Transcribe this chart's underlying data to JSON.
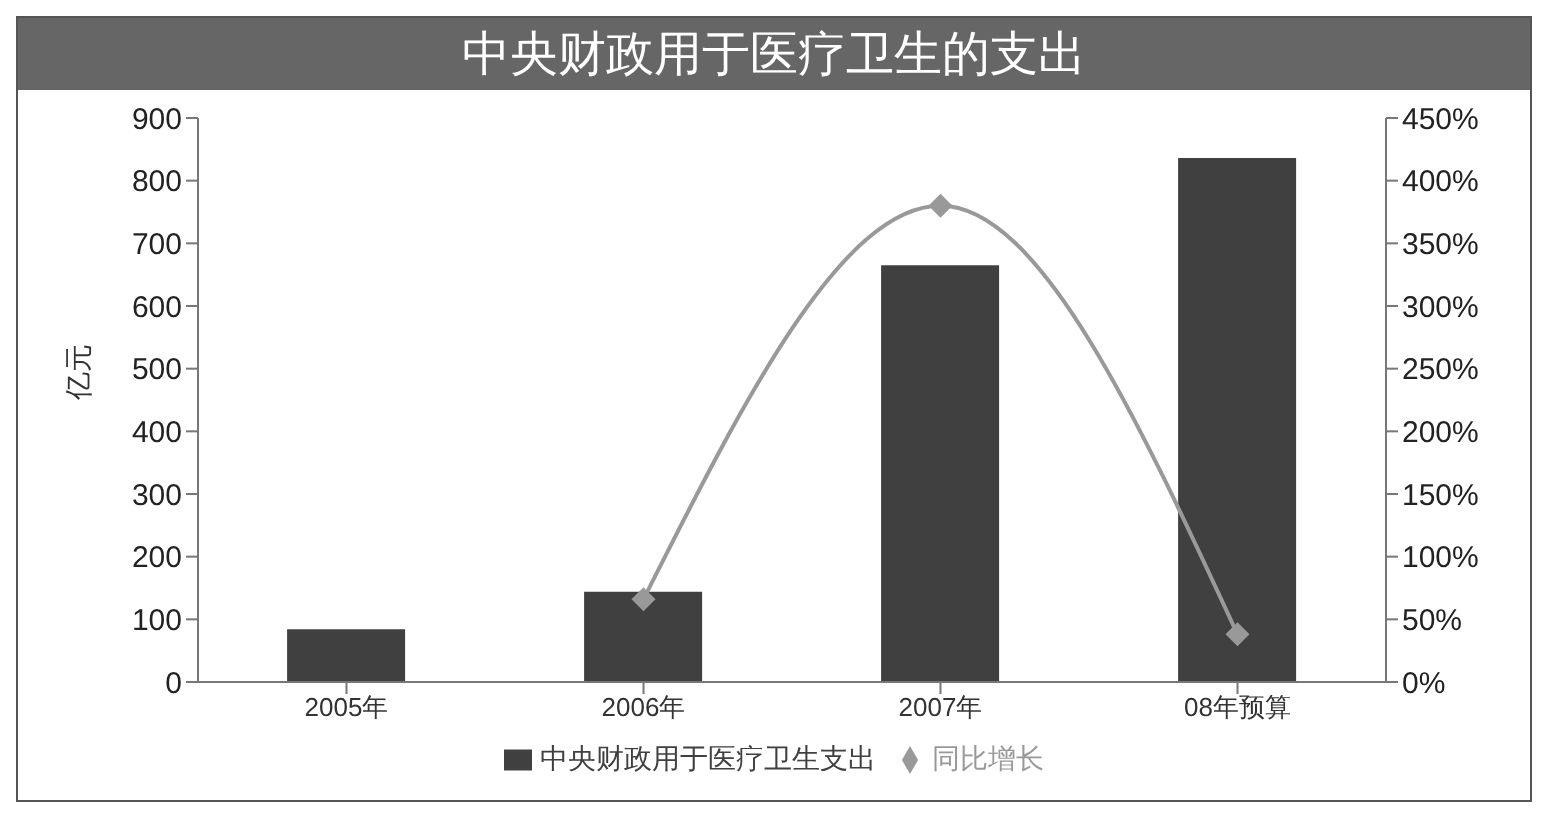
{
  "chart_data": {
    "type": "bar",
    "title": "中央财政用于医疗卫生的支出",
    "ylabel": "亿元",
    "categories": [
      "2005年",
      "2006年",
      "2007年",
      "08年预算"
    ],
    "series": [
      {
        "name": "中央财政用于医疗卫生支出",
        "color": "#404040",
        "values": [
          84,
          144,
          665,
          836
        ]
      },
      {
        "name": "同比增长",
        "type": "line",
        "axis": "y2",
        "color": "#999999",
        "values": [
          null,
          66,
          380,
          38
        ],
        "marker": "diamond"
      }
    ],
    "ylim": [
      0,
      900
    ],
    "yticks": [
      0,
      100,
      200,
      300,
      400,
      500,
      600,
      700,
      800,
      900
    ],
    "y2lim": [
      0,
      450
    ],
    "y2ticks": [
      {
        "value": 0,
        "label": "0%"
      },
      {
        "value": 50,
        "label": "50%"
      },
      {
        "value": 100,
        "label": "100%"
      },
      {
        "value": 150,
        "label": "150%"
      },
      {
        "value": 200,
        "label": "200%"
      },
      {
        "value": 250,
        "label": "250%"
      },
      {
        "value": 300,
        "label": "300%"
      },
      {
        "value": 350,
        "label": "350%"
      },
      {
        "value": 400,
        "label": "400%"
      },
      {
        "value": 450,
        "label": "450%"
      }
    ],
    "grid": false,
    "legend": "bottom"
  }
}
